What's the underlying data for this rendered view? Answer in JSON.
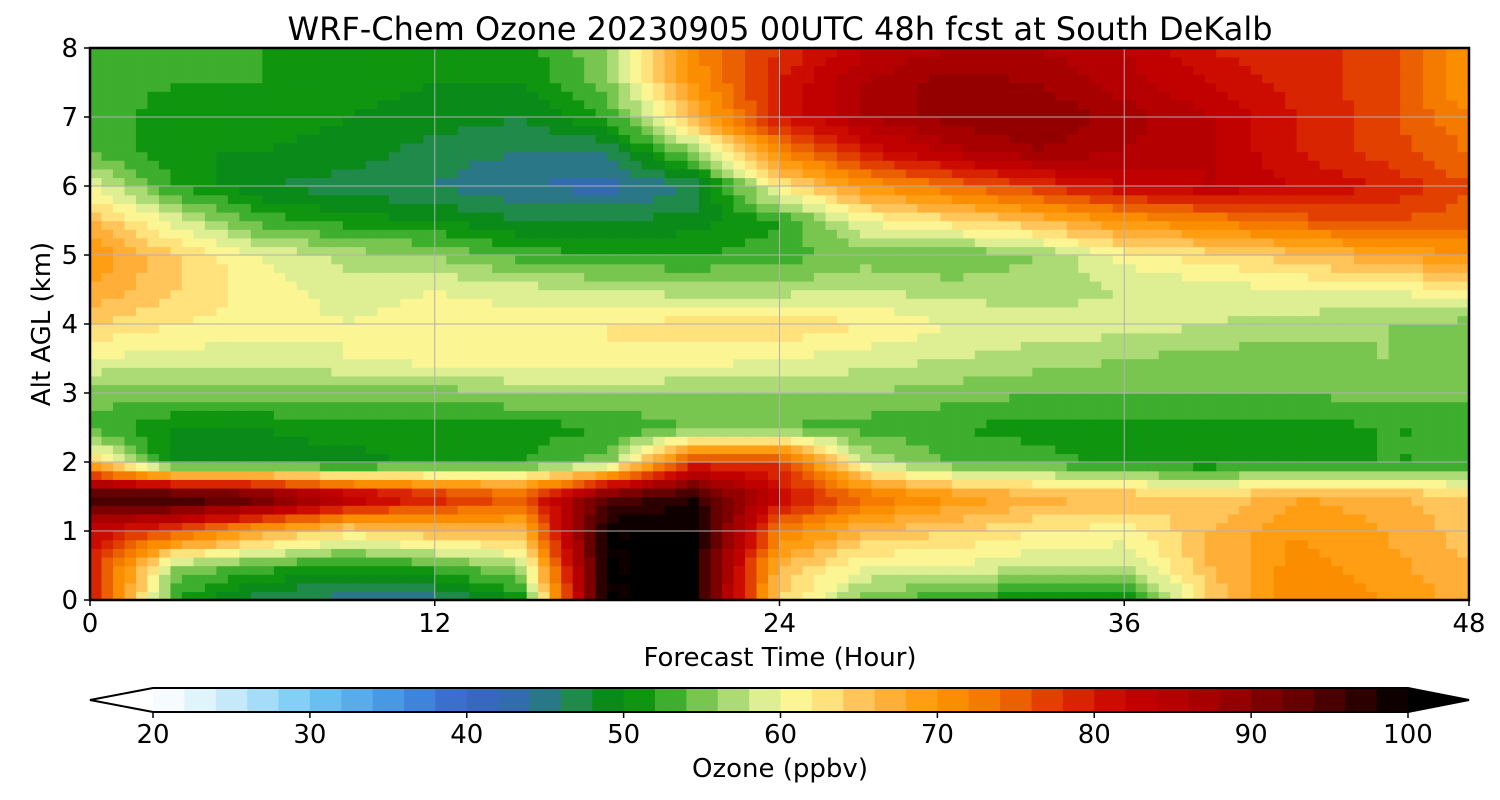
{
  "chart_data": {
    "type": "heatmap",
    "title": "WRF-Chem Ozone  20230905 00UTC 48h fcst at South DeKalb",
    "xlabel": "Forecast Time (Hour)",
    "ylabel": "Alt AGL (km)",
    "xlim": [
      0,
      48
    ],
    "ylim": [
      0,
      8
    ],
    "xticks": [
      "0",
      "12",
      "24",
      "36",
      "48"
    ],
    "yticks": [
      "0",
      "1",
      "2",
      "3",
      "4",
      "5",
      "6",
      "7",
      "8"
    ],
    "grid": true,
    "x_hours": [
      0,
      3,
      6,
      9,
      12,
      15,
      18,
      21,
      24,
      27,
      30,
      33,
      36,
      39,
      42,
      45,
      48
    ],
    "z_km": [
      0,
      0.5,
      1,
      1.5,
      2,
      2.5,
      3,
      3.5,
      4,
      4.5,
      5,
      5.5,
      6,
      6.5,
      7,
      7.5,
      8
    ],
    "values_ppbv": [
      [
        80,
        52,
        46,
        45,
        45,
        50,
        100,
        100,
        64,
        55,
        52,
        50,
        49,
        64,
        72,
        70,
        67
      ],
      [
        80,
        56,
        53,
        51,
        53,
        57,
        100,
        100,
        66,
        60,
        60,
        58,
        58,
        66,
        71,
        69,
        66
      ],
      [
        82,
        76,
        68,
        63,
        66,
        66,
        100,
        100,
        73,
        66,
        64,
        62,
        61,
        66,
        70,
        68,
        65
      ],
      [
        98,
        98,
        95,
        86,
        80,
        76,
        94,
        98,
        82,
        74,
        70,
        67,
        66,
        64,
        68,
        67,
        64
      ],
      [
        65,
        48,
        49,
        49,
        51,
        52,
        55,
        78,
        78,
        58,
        54,
        53,
        51,
        50,
        52,
        52,
        52
      ],
      [
        53,
        50,
        50,
        51,
        51,
        51,
        52,
        54,
        54,
        53,
        52,
        51,
        51,
        51,
        51,
        52,
        52
      ],
      [
        55,
        55,
        55,
        55,
        55,
        56,
        56,
        56,
        56,
        56,
        55,
        54,
        54,
        54,
        54,
        55,
        55
      ],
      [
        60,
        59,
        59,
        60,
        61,
        62,
        62,
        61,
        60,
        59,
        58,
        57,
        56,
        55,
        55,
        56,
        56
      ],
      [
        64,
        62,
        61,
        60,
        61,
        61,
        62,
        63,
        64,
        62,
        60,
        59,
        59,
        58,
        57,
        56,
        55
      ],
      [
        68,
        64,
        61,
        59,
        60,
        59,
        58,
        57,
        57,
        58,
        57,
        57,
        58,
        59,
        60,
        60,
        62
      ],
      [
        70,
        64,
        60,
        57,
        56,
        53,
        52,
        52,
        53,
        55,
        54,
        56,
        61,
        63,
        65,
        68,
        70
      ],
      [
        66,
        59,
        53,
        51,
        50,
        48,
        48,
        49,
        52,
        60,
        63,
        66,
        70,
        72,
        75,
        76,
        75
      ],
      [
        60,
        52,
        48,
        47,
        46,
        44,
        43,
        46,
        62,
        70,
        74,
        78,
        82,
        84,
        82,
        80,
        76
      ],
      [
        54,
        50,
        50,
        49,
        47,
        46,
        46,
        56,
        72,
        80,
        85,
        88,
        86,
        84,
        80,
        77,
        74
      ],
      [
        53,
        51,
        51,
        50,
        49,
        48,
        52,
        66,
        80,
        86,
        89,
        90,
        87,
        84,
        80,
        77,
        72
      ],
      [
        53,
        52,
        52,
        51,
        50,
        50,
        55,
        70,
        80,
        86,
        89,
        88,
        85,
        82,
        79,
        77,
        70
      ],
      [
        54,
        52,
        52,
        52,
        51,
        51,
        56,
        72,
        78,
        84,
        86,
        86,
        84,
        80,
        78,
        78,
        70
      ]
    ],
    "colorbar": {
      "label": "Ozone  (ppbv)",
      "range": [
        20,
        100
      ],
      "step": 2,
      "ticks": [
        "20",
        "30",
        "40",
        "50",
        "60",
        "70",
        "80",
        "90",
        "100"
      ],
      "extend": "both",
      "stops": [
        [
          20,
          "#ffffff"
        ],
        [
          24,
          "#d6f0fb"
        ],
        [
          30,
          "#73c8f4"
        ],
        [
          36,
          "#3f8fe0"
        ],
        [
          40,
          "#3b64c7"
        ],
        [
          44,
          "#2f6fa6"
        ],
        [
          47,
          "#1f8a4a"
        ],
        [
          50,
          "#008a00"
        ],
        [
          52,
          "#1ea01e"
        ],
        [
          54,
          "#5cbb3c"
        ],
        [
          56,
          "#93d062"
        ],
        [
          58,
          "#c4e58a"
        ],
        [
          60,
          "#f6f99a"
        ],
        [
          62,
          "#fff08c"
        ],
        [
          64,
          "#ffd36a"
        ],
        [
          66,
          "#ffb64a"
        ],
        [
          70,
          "#ff9600"
        ],
        [
          74,
          "#f07000"
        ],
        [
          78,
          "#dd3000"
        ],
        [
          82,
          "#c80000"
        ],
        [
          88,
          "#a00000"
        ],
        [
          94,
          "#5a0000"
        ],
        [
          100,
          "#000000"
        ]
      ]
    }
  }
}
